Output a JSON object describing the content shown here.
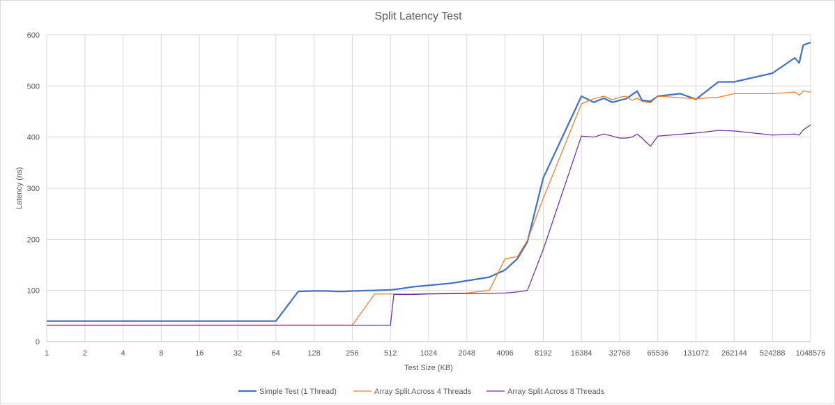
{
  "chart_data": {
    "type": "line",
    "title": "Split Latency Test",
    "xlabel": "Test Size (KB)",
    "ylabel": "Latency (ns)",
    "x_scale": "log2",
    "x_ticks": [
      "1",
      "2",
      "4",
      "8",
      "16",
      "32",
      "64",
      "128",
      "256",
      "512",
      "1024",
      "2048",
      "4096",
      "8192",
      "16384",
      "32768",
      "65536",
      "131072",
      "262144",
      "524288",
      "1048576"
    ],
    "ylim": [
      0,
      600
    ],
    "y_ticks": [
      "0",
      "100",
      "200",
      "300",
      "400",
      "500",
      "600"
    ],
    "grid": true,
    "legend_position": "bottom",
    "series": [
      {
        "name": "Simple Test (1 Thread)",
        "color": "#4472c4",
        "points": [
          [
            1,
            40
          ],
          [
            2,
            40
          ],
          [
            4,
            40
          ],
          [
            8,
            40
          ],
          [
            16,
            40
          ],
          [
            32,
            40
          ],
          [
            64,
            40
          ],
          [
            96,
            98
          ],
          [
            128,
            99
          ],
          [
            160,
            99
          ],
          [
            192,
            98
          ],
          [
            224,
            98
          ],
          [
            256,
            99
          ],
          [
            384,
            100
          ],
          [
            512,
            101
          ],
          [
            640,
            104
          ],
          [
            768,
            107
          ],
          [
            1024,
            110
          ],
          [
            1536,
            114
          ],
          [
            2048,
            119
          ],
          [
            3072,
            126
          ],
          [
            4096,
            140
          ],
          [
            5120,
            162
          ],
          [
            6144,
            195
          ],
          [
            8192,
            320
          ],
          [
            16384,
            480
          ],
          [
            20480,
            468
          ],
          [
            24576,
            476
          ],
          [
            28672,
            468
          ],
          [
            32768,
            472
          ],
          [
            36864,
            475
          ],
          [
            45056,
            490
          ],
          [
            49152,
            472
          ],
          [
            57344,
            470
          ],
          [
            65536,
            480
          ],
          [
            98304,
            485
          ],
          [
            131072,
            474
          ],
          [
            196608,
            508
          ],
          [
            262144,
            508
          ],
          [
            524288,
            525
          ],
          [
            786432,
            555
          ],
          [
            851968,
            545
          ],
          [
            917504,
            580
          ],
          [
            1048576,
            585
          ]
        ]
      },
      {
        "name": "Array Split Across 4 Threads",
        "color": "#ed7d31",
        "points": [
          [
            1,
            32
          ],
          [
            2,
            32
          ],
          [
            4,
            32
          ],
          [
            8,
            32
          ],
          [
            16,
            32
          ],
          [
            32,
            32
          ],
          [
            64,
            32
          ],
          [
            128,
            32
          ],
          [
            256,
            32
          ],
          [
            384,
            93
          ],
          [
            512,
            93
          ],
          [
            768,
            93
          ],
          [
            1024,
            94
          ],
          [
            2048,
            95
          ],
          [
            3072,
            100
          ],
          [
            4096,
            162
          ],
          [
            5120,
            166
          ],
          [
            6144,
            198
          ],
          [
            8192,
            280
          ],
          [
            16384,
            465
          ],
          [
            20480,
            475
          ],
          [
            24576,
            480
          ],
          [
            28672,
            473
          ],
          [
            32768,
            478
          ],
          [
            36864,
            480
          ],
          [
            40960,
            472
          ],
          [
            45056,
            476
          ],
          [
            49152,
            470
          ],
          [
            57344,
            467
          ],
          [
            65536,
            480
          ],
          [
            131072,
            475
          ],
          [
            196608,
            478
          ],
          [
            262144,
            485
          ],
          [
            524288,
            485
          ],
          [
            786432,
            488
          ],
          [
            851968,
            482
          ],
          [
            917504,
            490
          ],
          [
            1048576,
            488
          ]
        ]
      },
      {
        "name": "Array Split Across 8 Threads",
        "color": "#7030a0",
        "points": [
          [
            1,
            32
          ],
          [
            2,
            32
          ],
          [
            4,
            32
          ],
          [
            8,
            32
          ],
          [
            16,
            32
          ],
          [
            32,
            32
          ],
          [
            64,
            32
          ],
          [
            128,
            32
          ],
          [
            256,
            32
          ],
          [
            512,
            32
          ],
          [
            544,
            92
          ],
          [
            768,
            92
          ],
          [
            1024,
            93
          ],
          [
            2048,
            94
          ],
          [
            4096,
            95
          ],
          [
            5120,
            97
          ],
          [
            6144,
            100
          ],
          [
            8192,
            180
          ],
          [
            16384,
            402
          ],
          [
            20480,
            400
          ],
          [
            24576,
            406
          ],
          [
            28672,
            402
          ],
          [
            32768,
            398
          ],
          [
            36864,
            398
          ],
          [
            40960,
            400
          ],
          [
            45056,
            406
          ],
          [
            49152,
            398
          ],
          [
            57344,
            382
          ],
          [
            65536,
            402
          ],
          [
            131072,
            408
          ],
          [
            196608,
            413
          ],
          [
            262144,
            412
          ],
          [
            524288,
            404
          ],
          [
            786432,
            406
          ],
          [
            851968,
            404
          ],
          [
            917504,
            414
          ],
          [
            1048576,
            424
          ]
        ]
      }
    ]
  }
}
